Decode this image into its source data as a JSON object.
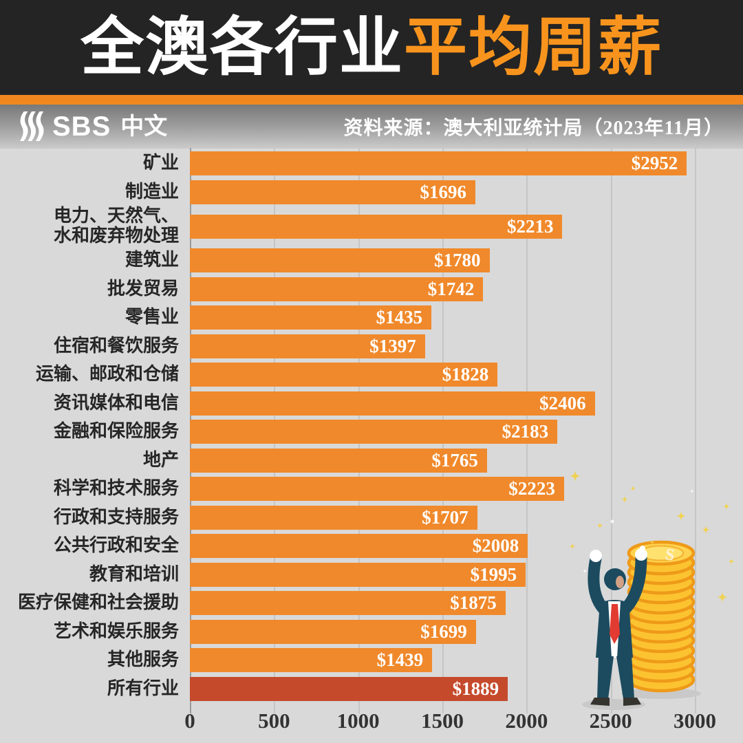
{
  "header": {
    "title_part1": "全澳各行业",
    "title_part2": "平均周薪"
  },
  "brandbar": {
    "logo_sbs": "SBS",
    "logo_cn": "中文",
    "source": "资料来源：澳大利亚统计局（2023年11月）"
  },
  "chart_data": {
    "type": "bar",
    "orientation": "horizontal",
    "title": "全澳各行业平均周薪",
    "source_note": "资料来源：澳大利亚统计局（2023年11月）",
    "xlim": [
      0,
      3000
    ],
    "x_ticks": [
      0,
      500,
      1000,
      1500,
      2000,
      2500,
      3000
    ],
    "grid": true,
    "legend": "none",
    "categories": [
      "矿业",
      "制造业",
      "电力、天然气、\n水和废弃物处理",
      "建筑业",
      "批发贸易",
      "零售业",
      "住宿和餐饮服务",
      "运输、邮政和仓储",
      "资讯媒体和电信",
      "金融和保险服务",
      "地产",
      "科学和技术服务",
      "行政和支持服务",
      "公共行政和安全",
      "教育和培训",
      "医疗保健和社会援助",
      "艺术和娱乐服务",
      "其他服务",
      "所有行业"
    ],
    "values": [
      2952,
      1696,
      2213,
      1780,
      1742,
      1435,
      1397,
      1828,
      2406,
      2183,
      1765,
      2223,
      1707,
      2008,
      1995,
      1875,
      1699,
      1439,
      1889
    ],
    "value_labels": [
      "$2952",
      "$1696",
      "$2213",
      "$1780",
      "$1742",
      "$1435",
      "$1397",
      "$1828",
      "$2406",
      "$2183",
      "$1765",
      "$2223",
      "$1707",
      "$2008",
      "$1995",
      "$1875",
      "$1699",
      "$1439",
      "$1889"
    ],
    "highlight_index": 18,
    "bar_color": "#f0892b",
    "highlight_color": "#c54a2b"
  },
  "illustration": {
    "description": "businessman-celebrating-beside-coin-stack",
    "coin_symbol": "S"
  }
}
